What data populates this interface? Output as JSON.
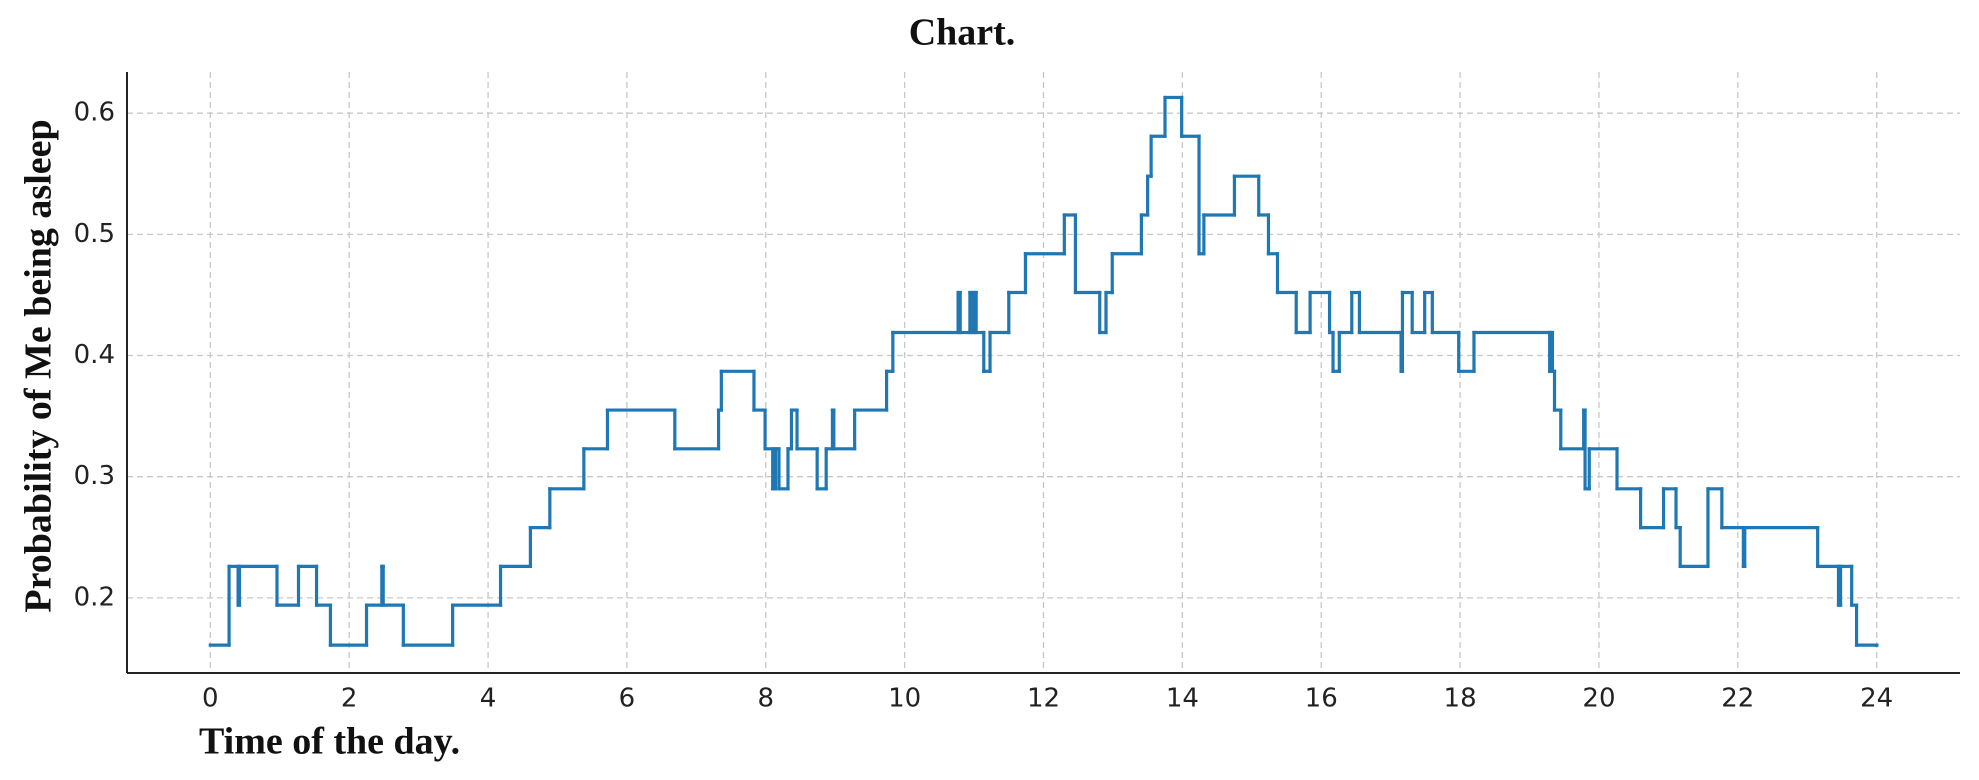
{
  "chart_data": {
    "type": "line",
    "step": "post",
    "title": "Chart.",
    "xlabel": "Time of the day.",
    "ylabel": "Probability of Me being asleep",
    "series": [
      {
        "color": "#1f77b4",
        "x": [
          0,
          0.27,
          0.4,
          0.42,
          0.96,
          1.27,
          1.53,
          1.73,
          2.25,
          2.47,
          2.49,
          2.78,
          3.49,
          4.18,
          4.61,
          4.89,
          5.38,
          5.72,
          6.69,
          7.32,
          7.36,
          7.83,
          7.99,
          8.1,
          8.14,
          8.19,
          8.32,
          8.37,
          8.45,
          8.74,
          8.87,
          8.96,
          8.98,
          9.28,
          9.74,
          9.83,
          10.77,
          10.8,
          10.94,
          10.98,
          11.01,
          11.03,
          11.14,
          11.23,
          11.5,
          11.74,
          12.3,
          12.46,
          12.81,
          12.9,
          12.99,
          13.41,
          13.5,
          13.55,
          13.75,
          13.99,
          14.24,
          14.31,
          14.75,
          15.1,
          15.24,
          15.37,
          15.64,
          15.84,
          16.12,
          16.17,
          16.26,
          16.44,
          16.55,
          17.15,
          17.17,
          17.31,
          17.49,
          17.6,
          17.98,
          18.2,
          19.29,
          19.31,
          19.33,
          19.36,
          19.45,
          19.78,
          19.8,
          19.86,
          20.26,
          20.6,
          20.93,
          21.11,
          21.17,
          21.57,
          21.77,
          22.08,
          22.1,
          23.15,
          23.45,
          23.48,
          23.64,
          23.71,
          24
        ],
        "values": [
          0.161,
          0.226,
          0.194,
          0.226,
          0.194,
          0.226,
          0.194,
          0.161,
          0.194,
          0.226,
          0.194,
          0.161,
          0.194,
          0.226,
          0.258,
          0.29,
          0.323,
          0.355,
          0.323,
          0.355,
          0.387,
          0.355,
          0.323,
          0.29,
          0.323,
          0.29,
          0.323,
          0.355,
          0.323,
          0.29,
          0.323,
          0.355,
          0.323,
          0.355,
          0.387,
          0.419,
          0.452,
          0.419,
          0.452,
          0.419,
          0.452,
          0.419,
          0.387,
          0.419,
          0.452,
          0.484,
          0.516,
          0.452,
          0.419,
          0.452,
          0.484,
          0.516,
          0.548,
          0.581,
          0.613,
          0.581,
          0.484,
          0.516,
          0.548,
          0.516,
          0.484,
          0.452,
          0.419,
          0.452,
          0.419,
          0.387,
          0.419,
          0.452,
          0.419,
          0.387,
          0.452,
          0.419,
          0.452,
          0.419,
          0.387,
          0.419,
          0.387,
          0.419,
          0.387,
          0.355,
          0.323,
          0.355,
          0.29,
          0.323,
          0.29,
          0.258,
          0.29,
          0.258,
          0.226,
          0.29,
          0.258,
          0.226,
          0.258,
          0.226,
          0.194,
          0.226,
          0.194,
          0.161,
          0.161
        ]
      }
    ],
    "xlim": [
      -1.2,
      25.2
    ],
    "xticks": [
      0,
      2,
      4,
      6,
      8,
      10,
      12,
      14,
      16,
      18,
      20,
      22,
      24
    ],
    "ylim": [
      0.138,
      0.634
    ],
    "yticks": [
      0.2,
      0.3,
      0.4,
      0.5,
      0.6
    ],
    "grid": true
  }
}
